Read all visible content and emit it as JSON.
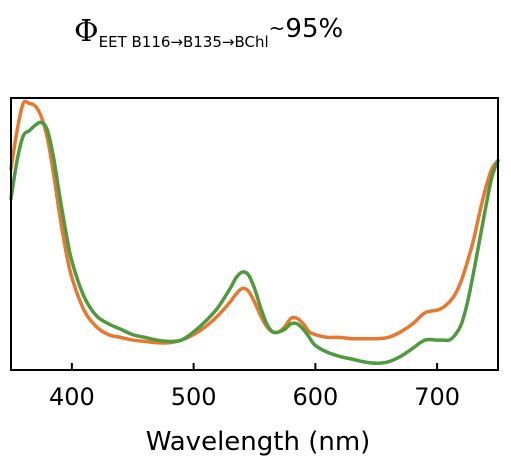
{
  "title": {
    "symbol": "Φ",
    "subscript": "EET B116→B135→BChl",
    "approx": "~",
    "value": "95%"
  },
  "chart_data": {
    "type": "line",
    "title": "",
    "xlabel": "Wavelength (nm)",
    "ylabel": "",
    "xlim": [
      350,
      750
    ],
    "ylim": [
      0,
      1
    ],
    "xticks": [
      400,
      500,
      600,
      700
    ],
    "xtick_labels": [
      "400",
      "500",
      "600",
      "700"
    ],
    "grid": false,
    "legend": "none",
    "series": [
      {
        "color": "#e8782e",
        "x": [
          350,
          355,
          360,
          365,
          370,
          375,
          380,
          385,
          390,
          395,
          400,
          410,
          420,
          430,
          440,
          450,
          460,
          470,
          480,
          490,
          500,
          510,
          520,
          530,
          535,
          540,
          545,
          550,
          555,
          560,
          565,
          570,
          575,
          580,
          585,
          590,
          595,
          600,
          610,
          620,
          630,
          640,
          650,
          660,
          670,
          680,
          690,
          700,
          705,
          710,
          715,
          720,
          725,
          730,
          735,
          740,
          745,
          750
        ],
        "y": [
          0.74,
          0.88,
          0.98,
          0.98,
          0.97,
          0.93,
          0.85,
          0.72,
          0.57,
          0.44,
          0.34,
          0.22,
          0.16,
          0.13,
          0.12,
          0.11,
          0.105,
          0.1,
          0.1,
          0.11,
          0.13,
          0.16,
          0.2,
          0.25,
          0.28,
          0.3,
          0.29,
          0.25,
          0.2,
          0.16,
          0.14,
          0.14,
          0.16,
          0.19,
          0.19,
          0.17,
          0.14,
          0.13,
          0.12,
          0.12,
          0.115,
          0.115,
          0.115,
          0.12,
          0.14,
          0.17,
          0.21,
          0.22,
          0.23,
          0.25,
          0.28,
          0.33,
          0.4,
          0.48,
          0.58,
          0.67,
          0.74,
          0.77
        ]
      },
      {
        "color": "#4e9a3e",
        "x": [
          350,
          355,
          360,
          365,
          370,
          375,
          380,
          385,
          390,
          395,
          400,
          410,
          420,
          430,
          440,
          450,
          460,
          470,
          480,
          490,
          500,
          510,
          520,
          530,
          535,
          540,
          545,
          550,
          555,
          560,
          565,
          570,
          575,
          580,
          585,
          590,
          595,
          600,
          610,
          620,
          630,
          640,
          650,
          660,
          670,
          680,
          690,
          700,
          705,
          710,
          715,
          720,
          725,
          730,
          735,
          740,
          745,
          750
        ],
        "y": [
          0.63,
          0.77,
          0.86,
          0.88,
          0.9,
          0.91,
          0.88,
          0.78,
          0.64,
          0.51,
          0.4,
          0.27,
          0.2,
          0.17,
          0.15,
          0.13,
          0.12,
          0.11,
          0.105,
          0.11,
          0.14,
          0.18,
          0.23,
          0.3,
          0.34,
          0.36,
          0.35,
          0.3,
          0.23,
          0.17,
          0.14,
          0.14,
          0.15,
          0.17,
          0.17,
          0.15,
          0.12,
          0.09,
          0.065,
          0.05,
          0.04,
          0.03,
          0.025,
          0.03,
          0.05,
          0.08,
          0.11,
          0.11,
          0.11,
          0.11,
          0.13,
          0.17,
          0.25,
          0.36,
          0.48,
          0.6,
          0.71,
          0.77
        ]
      }
    ]
  }
}
